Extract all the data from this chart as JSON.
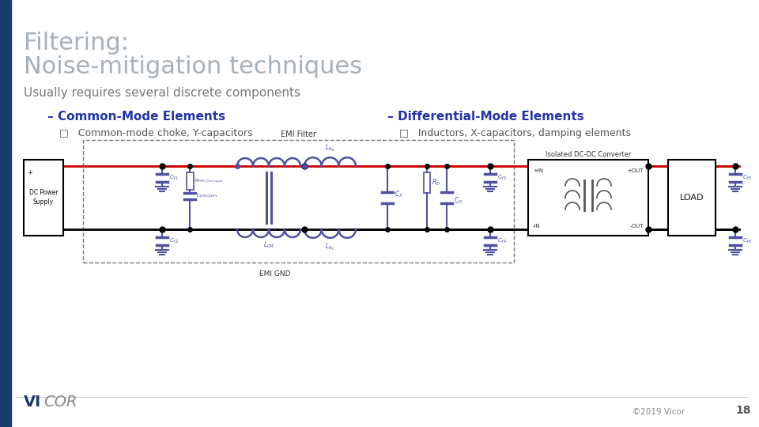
{
  "title_line1": "Filtering:",
  "title_line2": "Noise-mitigation techniques",
  "subtitle": "Usually requires several discrete components",
  "bullet1_header": "– Common-Mode Elements",
  "bullet1_sub": "□   Common-mode choke, Y-capacitors",
  "bullet2_header": "– Differential-Mode Elements",
  "bullet2_sub": "□   Inductors, X-capacitors, damping elements",
  "title_color": "#a8b0b8",
  "subtitle_color": "#787878",
  "bullet_header_color": "#2233aa",
  "bullet_sub_color": "#555555",
  "sidebar_color": "#1a3a6a",
  "vicor_vi_color": "#1a3a6a",
  "vicor_cor_color": "#888888",
  "footer_text": "©2019 Vicor",
  "page_number": "18",
  "background_color": "#ffffff",
  "red": "#cc0000",
  "blue_dark": "#000080",
  "purple": "#5050a0",
  "black": "#000000",
  "gray": "#555555"
}
